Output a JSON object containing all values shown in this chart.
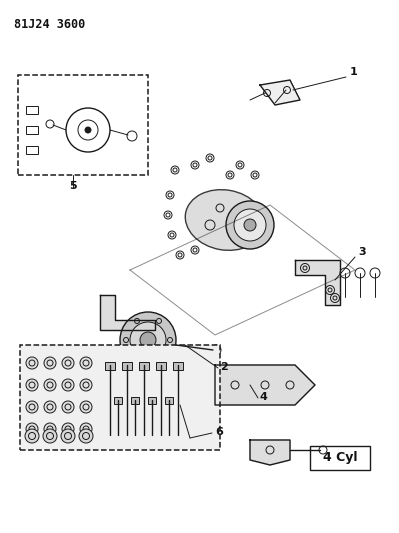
{
  "title_code": "81J24 3600",
  "background_color": "#ffffff",
  "line_color": "#1a1a1a",
  "label_color": "#111111",
  "part_numbers": [
    "1",
    "2",
    "3",
    "4",
    "5",
    "6"
  ],
  "box_label": "4 Cyl",
  "fig_width": 3.99,
  "fig_height": 5.33,
  "dpi": 100
}
